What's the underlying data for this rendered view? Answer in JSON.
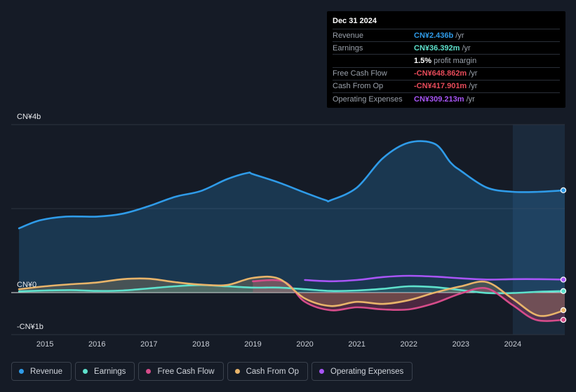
{
  "chart_data": {
    "type": "line",
    "y_tick_labels": [
      "CN¥4b",
      "CN¥0",
      "-CN¥1b"
    ],
    "y_ticks": [
      4,
      0,
      -1
    ],
    "ylim": [
      -1,
      4
    ],
    "xlim": [
      2014.35,
      2025.0
    ],
    "x_ticks": [
      2015,
      2016,
      2017,
      2018,
      2019,
      2020,
      2021,
      2022,
      2023,
      2024
    ],
    "x_tick_labels": [
      "2015",
      "2016",
      "2017",
      "2018",
      "2019",
      "2020",
      "2021",
      "2022",
      "2023",
      "2024"
    ],
    "highlight_start": 2024.0,
    "series": [
      {
        "name": "Revenue",
        "color": "#2f9be8",
        "fill": true,
        "x": [
          2014.5,
          2014.9,
          2015.4,
          2016.0,
          2016.5,
          2017.0,
          2017.5,
          2018.0,
          2018.5,
          2018.9,
          2019.0,
          2019.5,
          2020.0,
          2020.4,
          2020.5,
          2021.0,
          2021.5,
          2022.0,
          2022.5,
          2022.8,
          2023.0,
          2023.5,
          2024.0,
          2024.5,
          2025.0
        ],
        "values": [
          1.53,
          1.72,
          1.81,
          1.81,
          1.88,
          2.06,
          2.28,
          2.42,
          2.7,
          2.85,
          2.82,
          2.62,
          2.38,
          2.2,
          2.2,
          2.5,
          3.2,
          3.57,
          3.54,
          3.1,
          2.9,
          2.5,
          2.4,
          2.4,
          2.436
        ]
      },
      {
        "name": "Earnings",
        "color": "#5ee1cc",
        "fill": true,
        "x": [
          2014.5,
          2015.0,
          2015.5,
          2016.0,
          2016.5,
          2017.0,
          2017.5,
          2018.0,
          2018.5,
          2019.0,
          2019.5,
          2020.0,
          2020.5,
          2021.0,
          2021.5,
          2022.0,
          2022.5,
          2023.0,
          2023.5,
          2024.0,
          2024.5,
          2025.0
        ],
        "values": [
          0.03,
          0.05,
          0.06,
          0.04,
          0.05,
          0.1,
          0.15,
          0.18,
          0.15,
          0.12,
          0.12,
          0.08,
          0.04,
          0.05,
          0.09,
          0.15,
          0.13,
          0.06,
          -0.01,
          -0.01,
          0.02,
          0.036392
        ]
      },
      {
        "name": "Free Cash Flow",
        "color": "#d64c8a",
        "fill": true,
        "x": [
          2019.0,
          2019.6,
          2020.0,
          2020.5,
          2021.0,
          2021.5,
          2022.0,
          2022.5,
          2023.0,
          2023.5,
          2024.0,
          2024.45,
          2025.0
        ],
        "values": [
          0.27,
          0.26,
          -0.22,
          -0.42,
          -0.35,
          -0.4,
          -0.4,
          -0.25,
          -0.02,
          0.1,
          -0.3,
          -0.65,
          -0.648862
        ]
      },
      {
        "name": "Cash From Op",
        "color": "#e8b46a",
        "fill": true,
        "x": [
          2014.5,
          2015.0,
          2015.5,
          2016.0,
          2016.5,
          2017.0,
          2017.5,
          2018.0,
          2018.5,
          2019.0,
          2019.5,
          2020.0,
          2020.5,
          2021.0,
          2021.5,
          2022.0,
          2022.5,
          2023.0,
          2023.5,
          2024.0,
          2024.5,
          2025.0
        ],
        "values": [
          0.08,
          0.15,
          0.2,
          0.24,
          0.32,
          0.33,
          0.25,
          0.19,
          0.18,
          0.35,
          0.33,
          -0.14,
          -0.32,
          -0.22,
          -0.27,
          -0.18,
          0.0,
          0.15,
          0.25,
          -0.15,
          -0.55,
          -0.417901
        ]
      },
      {
        "name": "Operating Expenses",
        "color": "#a855f7",
        "fill": false,
        "x": [
          2020.0,
          2020.5,
          2021.0,
          2021.5,
          2022.0,
          2022.5,
          2023.0,
          2023.5,
          2024.0,
          2024.5,
          2025.0
        ],
        "values": [
          0.3,
          0.27,
          0.3,
          0.37,
          0.4,
          0.38,
          0.34,
          0.31,
          0.32,
          0.32,
          0.309213
        ]
      }
    ]
  },
  "tooltip": {
    "date": "Dec 31 2024",
    "rows": [
      {
        "label": "Revenue",
        "value": "CN¥2.436b",
        "unit": "/yr",
        "color": "#2f9be8"
      },
      {
        "label": "Earnings",
        "value": "CN¥36.392m",
        "unit": "/yr",
        "color": "#5ee1cc"
      },
      {
        "label": "",
        "value": "1.5%",
        "unit": "profit margin",
        "color": "#ffffff"
      },
      {
        "label": "Free Cash Flow",
        "value": "-CN¥648.862m",
        "unit": "/yr",
        "color": "#e84b5a"
      },
      {
        "label": "Cash From Op",
        "value": "-CN¥417.901m",
        "unit": "/yr",
        "color": "#e84b5a"
      },
      {
        "label": "Operating Expenses",
        "value": "CN¥309.213m",
        "unit": "/yr",
        "color": "#a855f7"
      }
    ]
  },
  "legend": [
    {
      "label": "Revenue",
      "color": "#2f9be8"
    },
    {
      "label": "Earnings",
      "color": "#5ee1cc"
    },
    {
      "label": "Free Cash Flow",
      "color": "#d64c8a"
    },
    {
      "label": "Cash From Op",
      "color": "#e8b46a"
    },
    {
      "label": "Operating Expenses",
      "color": "#a855f7"
    }
  ]
}
